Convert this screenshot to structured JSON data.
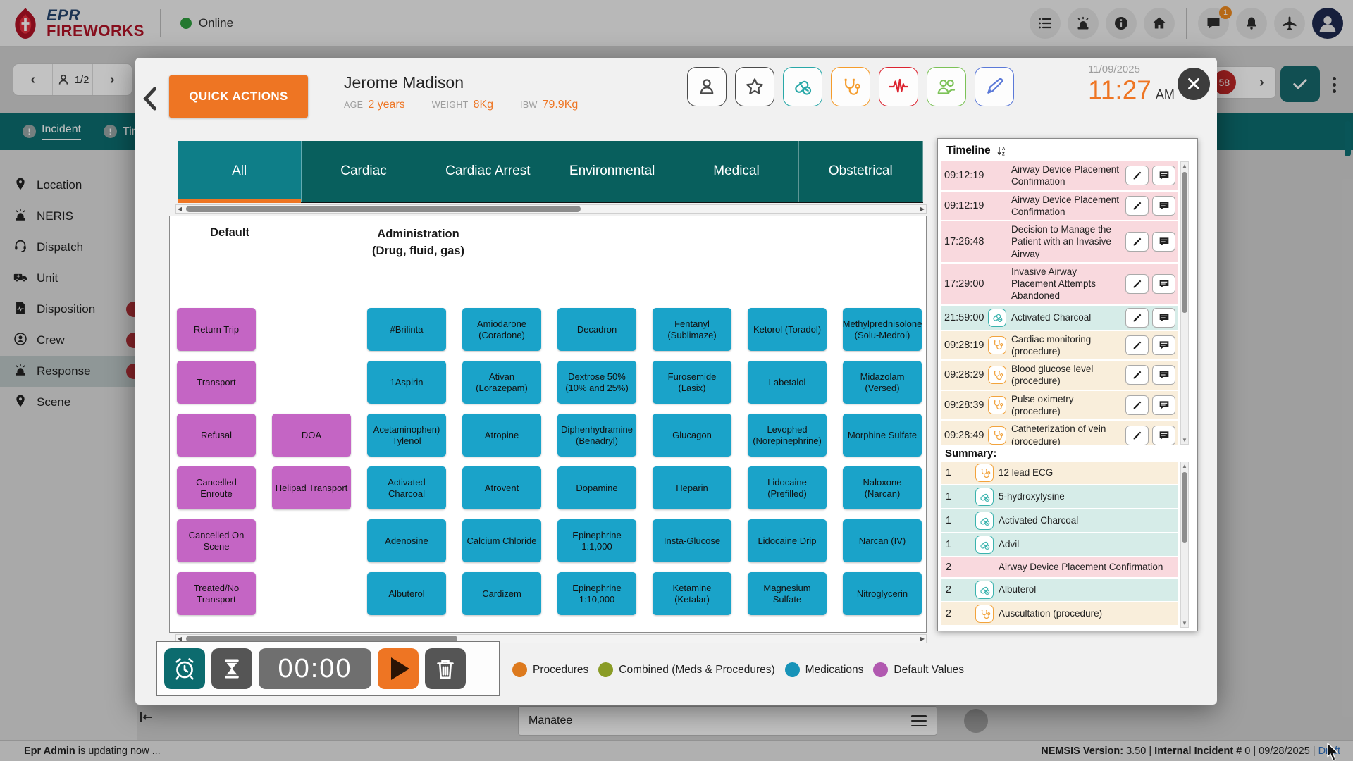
{
  "top_bar": {
    "brand_line1": "EPR",
    "brand_line2": "FIREWORKS",
    "status_label": "Online",
    "left_icons": [
      "list-icon",
      "siren-icon",
      "info-icon",
      "home-icon"
    ],
    "right_icons": [
      "chat-icon",
      "bell-icon",
      "plane-icon"
    ],
    "chat_badge": "1"
  },
  "background": {
    "pager": "1/2",
    "error_badge": "58",
    "strip_tabs": [
      {
        "label": "Incident",
        "active": true
      },
      {
        "label": "Tin",
        "active": false
      }
    ],
    "sidebar_items": [
      {
        "label": "Location",
        "icon": "pin-icon",
        "badge": false,
        "active": false
      },
      {
        "label": "NERIS",
        "icon": "siren-icon",
        "badge": false,
        "active": false
      },
      {
        "label": "Dispatch",
        "icon": "headset-icon",
        "badge": false,
        "active": false
      },
      {
        "label": "Unit",
        "icon": "ambulance-icon",
        "badge": false,
        "active": false
      },
      {
        "label": "Disposition",
        "icon": "document-icon",
        "badge": true,
        "active": false
      },
      {
        "label": "Crew",
        "icon": "crew-icon",
        "badge": true,
        "active": false
      },
      {
        "label": "Response",
        "icon": "siren-icon",
        "badge": true,
        "active": true
      },
      {
        "label": "Scene",
        "icon": "pin-icon",
        "badge": false,
        "active": false
      }
    ],
    "field_value": "Manatee"
  },
  "modal": {
    "quick_actions_label": "QUICK ACTIONS",
    "patient": {
      "name": "Jerome Madison",
      "age_label": "AGE",
      "age": "2 years",
      "weight_label": "WEIGHT",
      "weight": "8Kg",
      "ibw_label": "IBW",
      "ibw": "79.9Kg"
    },
    "header_icons": [
      {
        "name": "person-icon",
        "color": "#4a4a4a"
      },
      {
        "name": "star-icon",
        "color": "#4a4a4a"
      },
      {
        "name": "pills-icon",
        "color": "#29a8a8"
      },
      {
        "name": "stethoscope-icon",
        "color": "#f59c2b"
      },
      {
        "name": "ecg-icon",
        "color": "#dc2430"
      },
      {
        "name": "people-icon",
        "color": "#7cc257"
      },
      {
        "name": "pen-icon",
        "color": "#5b79d8"
      }
    ],
    "date": "11/09/2025",
    "time": "11:27",
    "meridiem": "AM",
    "tabs": [
      "All",
      "Cardiac",
      "Cardiac Arrest",
      "Environmental",
      "Medical",
      "Obstetrical"
    ],
    "active_tab": "All",
    "grid": {
      "col_header_1": "Default",
      "col_header_2_line1": "Administration",
      "col_header_2_line2": "(Drug, fluid, gas)",
      "columns": [
        {
          "type": "purple",
          "cells": [
            "Return Trip",
            "Transport",
            "Refusal",
            "Cancelled Enroute",
            "Cancelled On Scene",
            "Treated/No Transport"
          ]
        },
        {
          "type": "purple",
          "cells": [
            null,
            null,
            "DOA",
            "Helipad Transport",
            null,
            null
          ]
        },
        {
          "type": "blue",
          "cells": [
            "#Brilinta",
            "1Aspirin",
            "Acetaminophen) Tylenol",
            "Activated Charcoal",
            "Adenosine",
            "Albuterol"
          ]
        },
        {
          "type": "blue",
          "cells": [
            "Amiodarone (Coradone)",
            "Ativan (Lorazepam)",
            "Atropine",
            "Atrovent",
            "Calcium Chloride",
            "Cardizem"
          ]
        },
        {
          "type": "blue",
          "cells": [
            "Decadron",
            "Dextrose 50% (10% and 25%)",
            "Diphenhydramine (Benadryl)",
            "Dopamine",
            "Epinephrine 1:1,000",
            "Epinephrine 1:10,000"
          ]
        },
        {
          "type": "blue",
          "cells": [
            "Fentanyl (Sublimaze)",
            "Furosemide (Lasix)",
            "Glucagon",
            "Heparin",
            "Insta-Glucose",
            "Ketamine (Ketalar)"
          ]
        },
        {
          "type": "blue",
          "cells": [
            "Ketorol (Toradol)",
            "Labetalol",
            "Levophed (Norepinephrine)",
            "Lidocaine (Prefilled)",
            "Lidocaine Drip",
            "Magnesium Sulfate"
          ]
        },
        {
          "type": "blue",
          "cells": [
            "Methylprednisolone (Solu-Medrol)",
            "Midazolam (Versed)",
            "Morphine Sulfate",
            "Naloxone (Narcan)",
            "Narcan (IV)",
            "Nitroglycerin"
          ]
        }
      ]
    },
    "timer": {
      "display": "00:00"
    },
    "legend": [
      {
        "label": "Procedures",
        "color": "#dd7a1e"
      },
      {
        "label": "Combined (Meds & Procedures)",
        "color": "#8a9c26"
      },
      {
        "label": "Medications",
        "color": "#1793b8"
      },
      {
        "label": "Default Values",
        "color": "#b159b0"
      }
    ],
    "timeline": {
      "title": "Timeline",
      "entries": [
        {
          "time": "09:12:19",
          "label": "Airway Device Placement Confirmation",
          "type": "event"
        },
        {
          "time": "09:12:19",
          "label": "Airway Device Placement Confirmation",
          "type": "event"
        },
        {
          "time": "17:26:48",
          "label": "Decision to Manage the Patient with an Invasive Airway",
          "type": "event"
        },
        {
          "time": "17:29:00",
          "label": "Invasive Airway Placement Attempts Abandoned",
          "type": "event"
        },
        {
          "time": "21:59:00",
          "label": "Activated Charcoal",
          "type": "medication"
        },
        {
          "time": "09:28:19",
          "label": "Cardiac monitoring (procedure)",
          "type": "procedure"
        },
        {
          "time": "09:28:29",
          "label": "Blood glucose level (procedure)",
          "type": "procedure"
        },
        {
          "time": "09:28:39",
          "label": "Pulse oximetry (procedure)",
          "type": "procedure"
        },
        {
          "time": "09:28:49",
          "label": "Catheterization of vein (procedure)",
          "type": "procedure"
        }
      ]
    },
    "summary": {
      "title": "Summary:",
      "rows": [
        {
          "count": "1",
          "label": "12 lead ECG",
          "type": "procedure"
        },
        {
          "count": "1",
          "label": "5-hydroxylysine",
          "type": "medication"
        },
        {
          "count": "1",
          "label": "Activated Charcoal",
          "type": "medication"
        },
        {
          "count": "1",
          "label": "Advil",
          "type": "medication"
        },
        {
          "count": "2",
          "label": "Airway Device Placement Confirmation",
          "type": "event"
        },
        {
          "count": "2",
          "label": "Albuterol",
          "type": "medication"
        },
        {
          "count": "2",
          "label": "Auscultation (procedure)",
          "type": "procedure"
        }
      ]
    }
  },
  "status_bar": {
    "left_bold": "Epr Admin",
    "left_rest": " is updating now ...",
    "right1": "NEMSIS Version:",
    "right2": " 3.50 | ",
    "right3": "Internal Incident #",
    "right4": " 0 | 09/28/2025 | ",
    "right_link": "Draft"
  },
  "colors": {
    "accent_orange": "#ee7523",
    "teal_tab": "#085f5d",
    "teal_tab_active": "#0e7e88",
    "med_blue": "#1aa3c9",
    "default_purple": "#c465c4",
    "row_pink": "#f9d9de",
    "row_teal": "#d6ece8",
    "row_cream": "#f9eedb"
  }
}
